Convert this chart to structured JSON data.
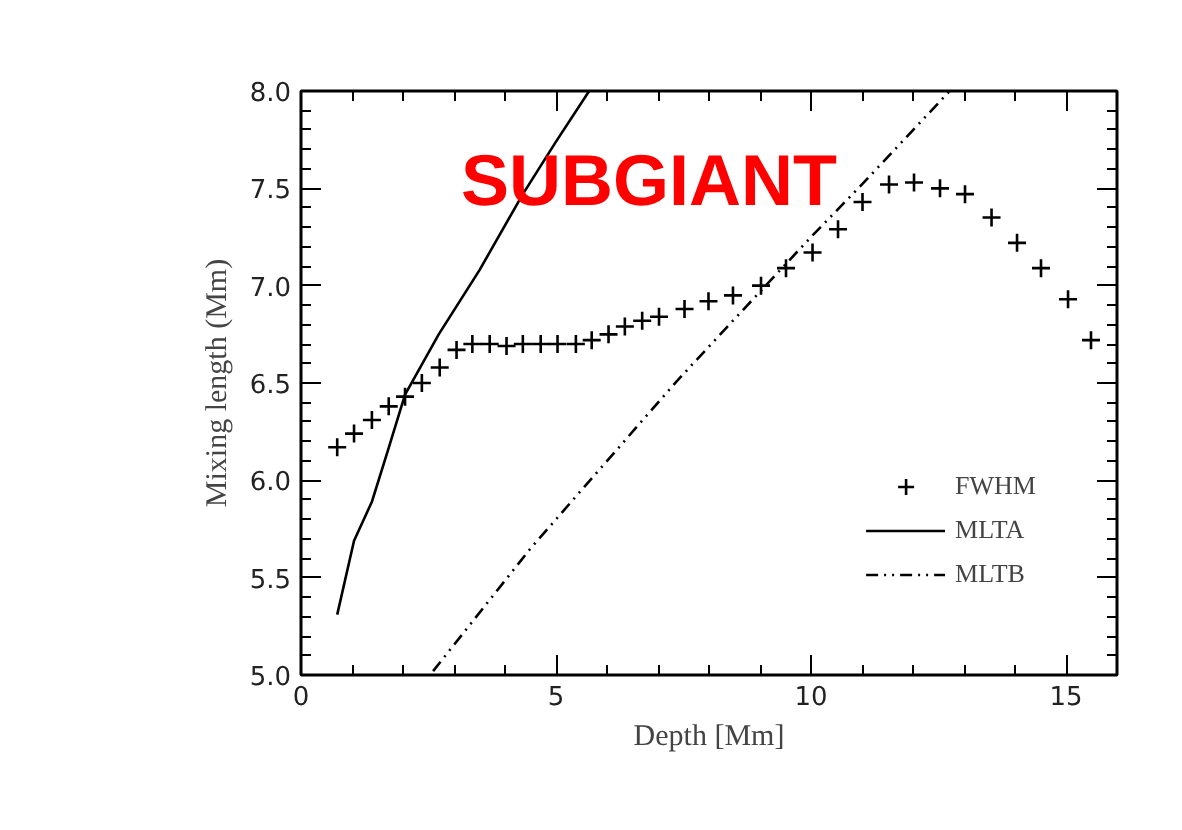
{
  "chart_data": {
    "type": "scatter",
    "title": "SUBGIANT",
    "xlabel": "Depth [Mm]",
    "ylabel": "Mixing length (Mm)",
    "xlim": [
      0,
      16
    ],
    "xticks": [
      0,
      5,
      10,
      15
    ],
    "ylim": [
      5,
      8
    ],
    "yticks": [
      {
        "value": 5,
        "label": "5.0"
      },
      {
        "value": 5.5,
        "label": "5.5"
      },
      {
        "value": 6,
        "label": "6.0"
      },
      {
        "value": 6.5,
        "label": "6.5"
      },
      {
        "value": 7,
        "label": "7.0"
      },
      {
        "value": 7.5,
        "label": "7.5"
      },
      {
        "value": 8,
        "label": "8.0"
      }
    ],
    "grid": false,
    "legend": "bottom right",
    "series": [
      {
        "name": "FWHM",
        "marker": "cross",
        "color": "#000000",
        "x": [
          0.71,
          1.04,
          1.39,
          1.72,
          2.04,
          2.37,
          2.72,
          3.05,
          3.36,
          3.7,
          4.03,
          4.35,
          4.7,
          5.03,
          5.39,
          5.7,
          6.03,
          6.35,
          6.69,
          7.02,
          7.52,
          7.99,
          8.47,
          9.02,
          9.51,
          10.03,
          10.53,
          11.01,
          11.53,
          12.02,
          12.53,
          13.02,
          13.54,
          14.04,
          14.51,
          15.04,
          15.49
        ],
        "values": [
          6.17,
          6.24,
          6.31,
          6.38,
          6.43,
          6.5,
          6.58,
          6.67,
          6.7,
          6.7,
          6.69,
          6.7,
          6.7,
          6.7,
          6.7,
          6.72,
          6.75,
          6.79,
          6.82,
          6.84,
          6.88,
          6.92,
          6.95,
          7.0,
          7.09,
          7.17,
          7.29,
          7.43,
          7.52,
          7.53,
          7.5,
          7.47,
          7.35,
          7.22,
          7.09,
          6.93,
          6.72
        ]
      },
      {
        "name": "MLTA",
        "type": "line",
        "line_style": "solid",
        "color": "#000000",
        "x": [
          0.71,
          1.04,
          1.39,
          1.7,
          2.04,
          2.7,
          3.5,
          4.35,
          5.0,
          5.65
        ],
        "values": [
          5.31,
          5.69,
          5.89,
          6.15,
          6.44,
          6.75,
          7.08,
          7.47,
          7.74,
          8.0
        ]
      },
      {
        "name": "MLTB",
        "type": "line",
        "line_style": "dashed",
        "color": "#000000",
        "x": [
          2.59,
          4.5,
          7.37,
          8.47,
          10.0,
          11.0,
          12.72
        ],
        "values": [
          5.02,
          5.65,
          6.51,
          6.82,
          7.25,
          7.52,
          8.0
        ]
      }
    ]
  }
}
